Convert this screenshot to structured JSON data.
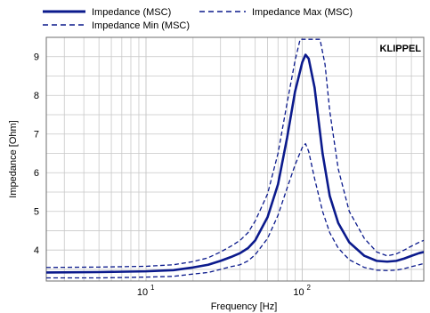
{
  "colors": {
    "series": "#0b1a8c",
    "grid": "#c8c8c8",
    "frame": "#6d6d6d",
    "watermark": "#1f5fbf"
  },
  "watermark": "KLIPPEL",
  "chart_data": {
    "type": "line",
    "xscale": "log",
    "xlim": [
      2.3,
      600
    ],
    "ylim": [
      3.2,
      9.5
    ],
    "xlabel": "Frequency  [Hz]",
    "ylabel": "Impedance  [Ohm]",
    "x_ticks": [
      {
        "value": 10,
        "label": "10",
        "sup": "1"
      },
      {
        "value": 100,
        "label": "10",
        "sup": "2"
      }
    ],
    "y_ticks": [
      {
        "value": 4,
        "label": "4"
      },
      {
        "value": 5,
        "label": "5"
      },
      {
        "value": 6,
        "label": "6"
      },
      {
        "value": 7,
        "label": "7"
      },
      {
        "value": 8,
        "label": "8"
      },
      {
        "value": 9,
        "label": "9"
      }
    ],
    "grid": true,
    "legend_position": "top",
    "series": [
      {
        "name": "Impedance (MSC)",
        "style": "solid",
        "width": 2.6,
        "points": [
          [
            2.3,
            3.42
          ],
          [
            5,
            3.43
          ],
          [
            10,
            3.45
          ],
          [
            15,
            3.48
          ],
          [
            20,
            3.55
          ],
          [
            25,
            3.62
          ],
          [
            30,
            3.72
          ],
          [
            35,
            3.82
          ],
          [
            40,
            3.92
          ],
          [
            45,
            4.05
          ],
          [
            50,
            4.25
          ],
          [
            60,
            4.85
          ],
          [
            70,
            5.7
          ],
          [
            80,
            6.9
          ],
          [
            90,
            8.1
          ],
          [
            100,
            8.85
          ],
          [
            105,
            9.05
          ],
          [
            110,
            8.95
          ],
          [
            120,
            8.2
          ],
          [
            135,
            6.5
          ],
          [
            150,
            5.4
          ],
          [
            170,
            4.7
          ],
          [
            200,
            4.2
          ],
          [
            250,
            3.85
          ],
          [
            300,
            3.72
          ],
          [
            350,
            3.7
          ],
          [
            400,
            3.72
          ],
          [
            450,
            3.78
          ],
          [
            500,
            3.85
          ],
          [
            560,
            3.92
          ],
          [
            600,
            3.95
          ]
        ]
      },
      {
        "name": "Impedance Max (MSC)",
        "style": "dashed",
        "width": 1.3,
        "points": [
          [
            2.3,
            3.55
          ],
          [
            5,
            3.56
          ],
          [
            10,
            3.58
          ],
          [
            15,
            3.62
          ],
          [
            20,
            3.7
          ],
          [
            25,
            3.8
          ],
          [
            30,
            3.95
          ],
          [
            35,
            4.1
          ],
          [
            40,
            4.25
          ],
          [
            45,
            4.45
          ],
          [
            50,
            4.75
          ],
          [
            60,
            5.45
          ],
          [
            70,
            6.5
          ],
          [
            80,
            7.8
          ],
          [
            90,
            8.9
          ],
          [
            97,
            9.45
          ],
          [
            130,
            9.45
          ],
          [
            140,
            8.8
          ],
          [
            150,
            7.6
          ],
          [
            170,
            6.1
          ],
          [
            200,
            5.0
          ],
          [
            250,
            4.3
          ],
          [
            300,
            3.95
          ],
          [
            350,
            3.85
          ],
          [
            400,
            3.9
          ],
          [
            450,
            4.0
          ],
          [
            500,
            4.1
          ],
          [
            560,
            4.2
          ],
          [
            600,
            4.25
          ]
        ]
      },
      {
        "name": "Impedance Min (MSC)",
        "style": "dashed",
        "width": 1.3,
        "points": [
          [
            2.3,
            3.28
          ],
          [
            5,
            3.28
          ],
          [
            10,
            3.3
          ],
          [
            15,
            3.32
          ],
          [
            20,
            3.38
          ],
          [
            25,
            3.42
          ],
          [
            30,
            3.5
          ],
          [
            35,
            3.57
          ],
          [
            40,
            3.62
          ],
          [
            45,
            3.72
          ],
          [
            50,
            3.88
          ],
          [
            60,
            4.3
          ],
          [
            70,
            4.9
          ],
          [
            80,
            5.6
          ],
          [
            90,
            6.2
          ],
          [
            100,
            6.65
          ],
          [
            105,
            6.75
          ],
          [
            110,
            6.55
          ],
          [
            120,
            5.85
          ],
          [
            135,
            5.0
          ],
          [
            150,
            4.45
          ],
          [
            170,
            4.05
          ],
          [
            200,
            3.75
          ],
          [
            250,
            3.55
          ],
          [
            300,
            3.48
          ],
          [
            350,
            3.47
          ],
          [
            400,
            3.48
          ],
          [
            450,
            3.52
          ],
          [
            500,
            3.57
          ],
          [
            560,
            3.62
          ],
          [
            600,
            3.65
          ]
        ]
      }
    ]
  }
}
